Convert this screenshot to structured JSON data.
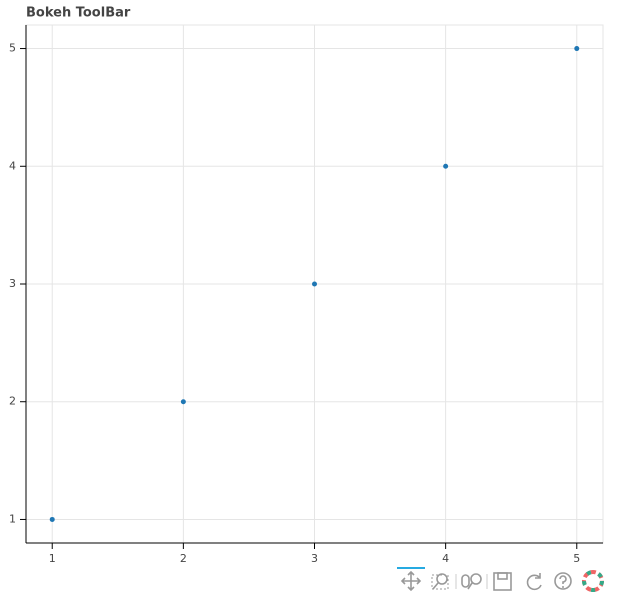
{
  "chart_data": {
    "type": "scatter",
    "title": "Bokeh ToolBar",
    "x": [
      1,
      2,
      3,
      4,
      5
    ],
    "values": [
      1,
      2,
      3,
      4,
      5
    ],
    "color": "#1f77b4",
    "xlim": [
      0.8,
      5.2
    ],
    "ylim": [
      0.8,
      5.2
    ],
    "xticks": [
      1,
      2,
      3,
      4,
      5
    ],
    "yticks": [
      1,
      2,
      3,
      4,
      5
    ],
    "grid": true
  }
}
